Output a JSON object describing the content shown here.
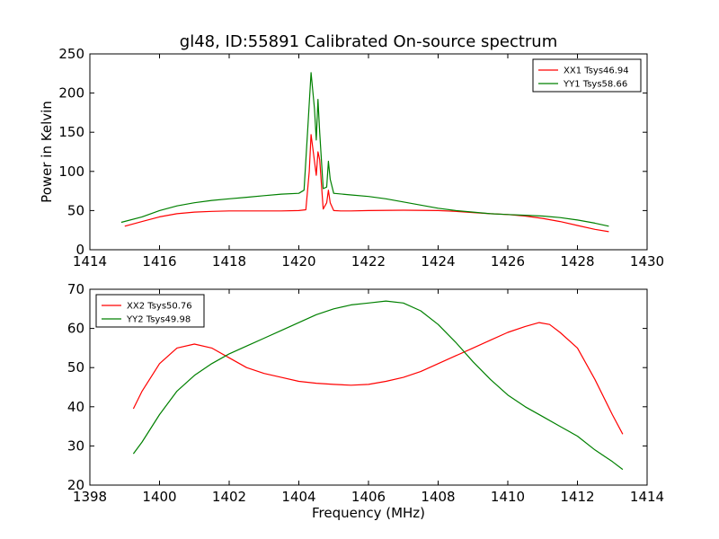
{
  "title": "gl48, ID:55891 Calibrated On-source spectrum",
  "colors": {
    "xx": "#ff0000",
    "yy": "#008000",
    "frame": "#000000",
    "background": "#ffffff"
  },
  "chart_data": [
    {
      "type": "line",
      "title": "gl48, ID:55891 Calibrated On-source spectrum",
      "xlabel": "",
      "ylabel": "Power in Kelvin",
      "xlim": [
        1414,
        1430
      ],
      "ylim": [
        0,
        250
      ],
      "xticks": [
        "1414",
        "1416",
        "1418",
        "1420",
        "1422",
        "1424",
        "1426",
        "1428",
        "1430"
      ],
      "yticks": [
        "0",
        "50",
        "100",
        "150",
        "200",
        "250"
      ],
      "grid": false,
      "legend_position": "top-right",
      "series": [
        {
          "name": "XX1 Tsys46.94",
          "color": "#ff0000",
          "x": [
            1415.0,
            1415.5,
            1416.0,
            1416.5,
            1417.0,
            1417.5,
            1418.0,
            1418.5,
            1419.0,
            1419.5,
            1420.0,
            1420.2,
            1420.3,
            1420.35,
            1420.4,
            1420.5,
            1420.55,
            1420.6,
            1420.7,
            1420.8,
            1420.85,
            1420.9,
            1421.0,
            1421.2,
            1421.5,
            1422.0,
            1423.0,
            1424.0,
            1424.5,
            1425.0,
            1425.5,
            1426.0,
            1426.5,
            1427.0,
            1427.5,
            1428.0,
            1428.5,
            1428.9
          ],
          "y": [
            30,
            36,
            42,
            46,
            48,
            49,
            49.5,
            49.5,
            49.5,
            49.5,
            50,
            51,
            100,
            147,
            130,
            95,
            125,
            115,
            52,
            60,
            76,
            60,
            50,
            49.5,
            49.5,
            50,
            50.5,
            50,
            49,
            47.5,
            46,
            45,
            43,
            40,
            36,
            31,
            26,
            23
          ]
        },
        {
          "name": "YY1 Tsys58.66",
          "color": "#008000",
          "x": [
            1414.9,
            1415.5,
            1416.0,
            1416.5,
            1417.0,
            1417.5,
            1418.0,
            1418.5,
            1419.0,
            1419.5,
            1420.0,
            1420.15,
            1420.25,
            1420.35,
            1420.45,
            1420.5,
            1420.55,
            1420.6,
            1420.7,
            1420.8,
            1420.85,
            1420.9,
            1421.0,
            1421.5,
            1422.0,
            1422.5,
            1423.0,
            1423.5,
            1424.0,
            1424.5,
            1425.0,
            1425.5,
            1426.0,
            1426.5,
            1427.0,
            1427.5,
            1428.0,
            1428.5,
            1428.9
          ],
          "y": [
            35,
            42,
            50,
            56,
            60,
            63,
            65,
            67,
            69,
            71,
            72,
            76,
            150,
            226,
            180,
            140,
            192,
            150,
            78,
            80,
            113,
            90,
            72,
            70,
            68,
            65,
            61,
            57,
            53,
            50,
            48,
            46,
            45,
            44,
            43,
            41,
            38,
            34,
            30
          ]
        }
      ]
    },
    {
      "type": "line",
      "title": "",
      "xlabel": "Frequency (MHz)",
      "ylabel": "",
      "xlim": [
        1398,
        1414
      ],
      "ylim": [
        20,
        70
      ],
      "xticks": [
        "1398",
        "1400",
        "1402",
        "1404",
        "1406",
        "1408",
        "1410",
        "1412",
        "1414"
      ],
      "yticks": [
        "20",
        "30",
        "40",
        "50",
        "60",
        "70"
      ],
      "grid": false,
      "legend_position": "top-left",
      "series": [
        {
          "name": "XX2 Tsys50.76",
          "color": "#ff0000",
          "x": [
            1399.25,
            1399.5,
            1400.0,
            1400.5,
            1401.0,
            1401.5,
            1402.0,
            1402.5,
            1403.0,
            1403.5,
            1404.0,
            1404.5,
            1405.0,
            1405.5,
            1406.0,
            1406.5,
            1407.0,
            1407.5,
            1408.0,
            1408.5,
            1409.0,
            1409.5,
            1410.0,
            1410.5,
            1410.9,
            1411.2,
            1411.5,
            1412.0,
            1412.5,
            1413.0,
            1413.3
          ],
          "y": [
            39.5,
            44,
            51,
            55,
            56,
            55,
            52.5,
            50,
            48.5,
            47.5,
            46.5,
            46,
            45.7,
            45.5,
            45.7,
            46.5,
            47.5,
            49,
            51,
            53,
            55,
            57,
            59,
            60.5,
            61.5,
            61,
            59,
            55,
            47,
            38,
            33
          ]
        },
        {
          "name": "YY2 Tsys49.98",
          "color": "#008000",
          "x": [
            1399.25,
            1399.5,
            1400.0,
            1400.5,
            1401.0,
            1401.5,
            1402.0,
            1402.5,
            1403.0,
            1403.5,
            1404.0,
            1404.5,
            1405.0,
            1405.5,
            1406.0,
            1406.5,
            1407.0,
            1407.5,
            1408.0,
            1408.5,
            1409.0,
            1409.5,
            1410.0,
            1410.5,
            1411.0,
            1411.5,
            1412.0,
            1412.5,
            1413.0,
            1413.3
          ],
          "y": [
            28,
            31,
            38,
            44,
            48,
            51,
            53.5,
            55.5,
            57.5,
            59.5,
            61.5,
            63.5,
            65,
            66,
            66.5,
            67,
            66.5,
            64.5,
            61,
            56.5,
            51.5,
            47,
            43,
            40,
            37.5,
            35,
            32.5,
            29,
            26,
            24
          ]
        }
      ]
    }
  ]
}
